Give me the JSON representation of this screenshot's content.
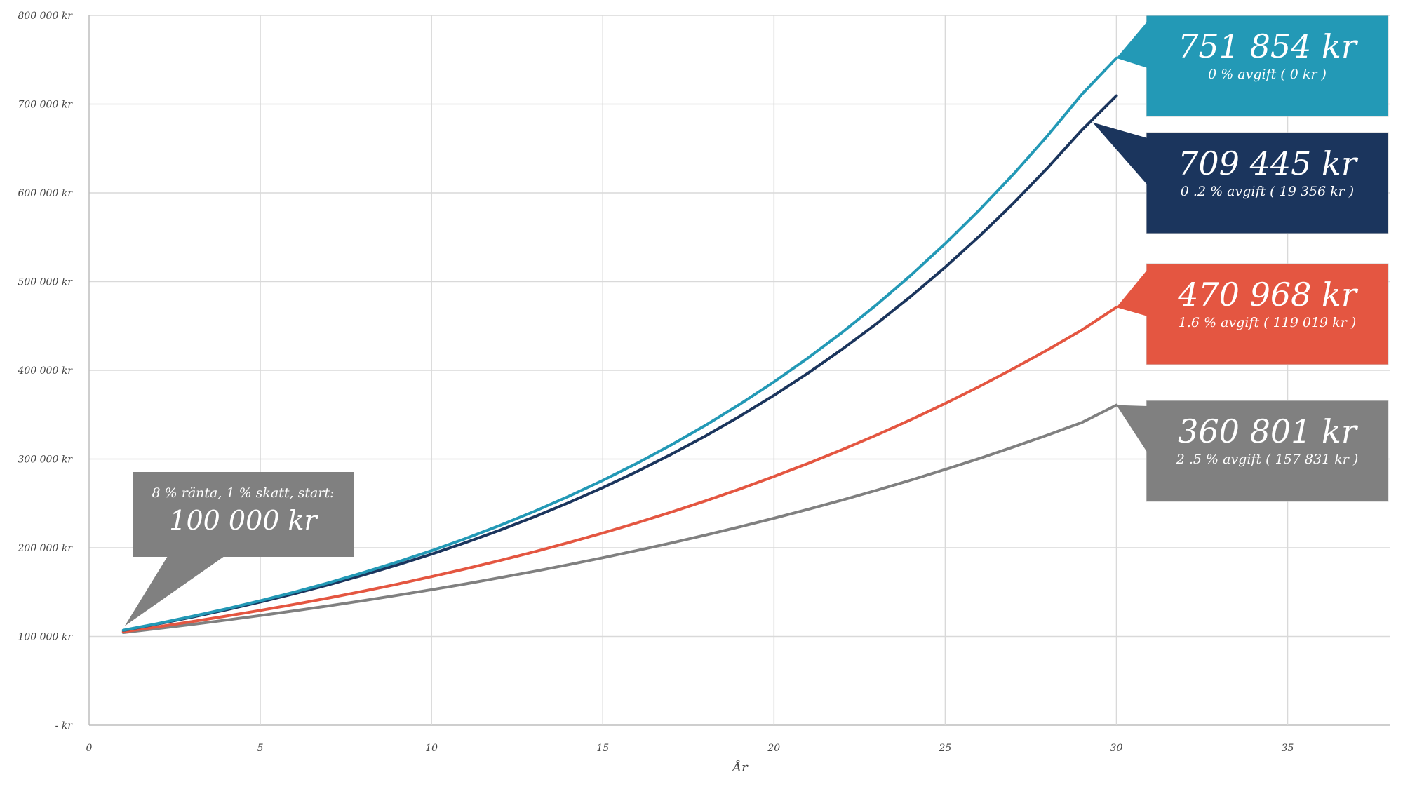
{
  "chart_data": {
    "type": "line",
    "xlabel": "År",
    "ylabel": "",
    "xlim": [
      0,
      38
    ],
    "ylim": [
      0,
      800000
    ],
    "x_ticks": [
      "0",
      "5",
      "10",
      "15",
      "20",
      "25",
      "30",
      "35"
    ],
    "y_ticks": [
      "-  kr",
      "100 000 kr",
      "200 000 kr",
      "300 000 kr",
      "400 000 kr",
      "500 000 kr",
      "600 000 kr",
      "700 000 kr",
      "800 000 kr"
    ],
    "grid": true,
    "x": [
      1,
      2,
      3,
      4,
      5,
      6,
      7,
      8,
      9,
      10,
      11,
      12,
      13,
      14,
      15,
      16,
      17,
      18,
      19,
      20,
      21,
      22,
      23,
      24,
      25,
      26,
      27,
      28,
      29,
      30
    ],
    "series": [
      {
        "color": "#2399b6",
        "values": [
          107000,
          114490,
          122504,
          131080,
          140255,
          150073,
          160578,
          171819,
          183846,
          196715,
          210485,
          225219,
          240985,
          257853,
          275903,
          295216,
          315881,
          337993,
          361652,
          386968,
          414055,
          443039,
          474052,
          507236,
          542743,
          580735,
          621386,
          664883,
          711425,
          751854
        ]
      },
      {
        "color": "#1b355d",
        "values": [
          106786,
          114032,
          121769,
          130033,
          138857,
          148279,
          158341,
          169085,
          180559,
          192811,
          205895,
          219867,
          234787,
          250719,
          267732,
          285900,
          305300,
          326017,
          348140,
          371764,
          396991,
          423930,
          452696,
          483415,
          516218,
          551248,
          588654,
          628599,
          671254,
          709445
        ]
      },
      {
        "color": "#e45641",
        "values": [
          105288,
          110855,
          116717,
          122889,
          129388,
          136230,
          143434,
          151019,
          159005,
          167414,
          176267,
          185588,
          195402,
          205735,
          216615,
          228070,
          240131,
          252830,
          266200,
          280277,
          295098,
          310703,
          327134,
          344433,
          362648,
          381825,
          402016,
          423276,
          445659,
          470968
        ]
      },
      {
        "color": "#808080",
        "values": [
          104325,
          108837,
          113544,
          118455,
          123578,
          128922,
          134498,
          140315,
          146383,
          152714,
          159318,
          166209,
          173397,
          180896,
          188719,
          196881,
          205396,
          214279,
          223546,
          233214,
          243300,
          253822,
          264799,
          276251,
          288199,
          300663,
          313666,
          327231,
          341383,
          360801
        ]
      }
    ]
  },
  "callouts": [
    {
      "value": "751 854 kr",
      "note": "0 % avgift ( 0 kr )",
      "color": "#2399b6"
    },
    {
      "value": "709 445 kr",
      "note": "0 .2 % avgift ( 19 356 kr )",
      "color": "#1b355d"
    },
    {
      "value": "470 968 kr",
      "note": "1.6 % avgift ( 119 019 kr )",
      "color": "#e45641"
    },
    {
      "value": "360 801 kr",
      "note": "2 .5 % avgift ( 157 831 kr )",
      "color": "#808080"
    }
  ],
  "start_box": {
    "line1": "8 % ränta, 1 % skatt, start:",
    "line2": "100 000 kr",
    "color": "#808080"
  }
}
